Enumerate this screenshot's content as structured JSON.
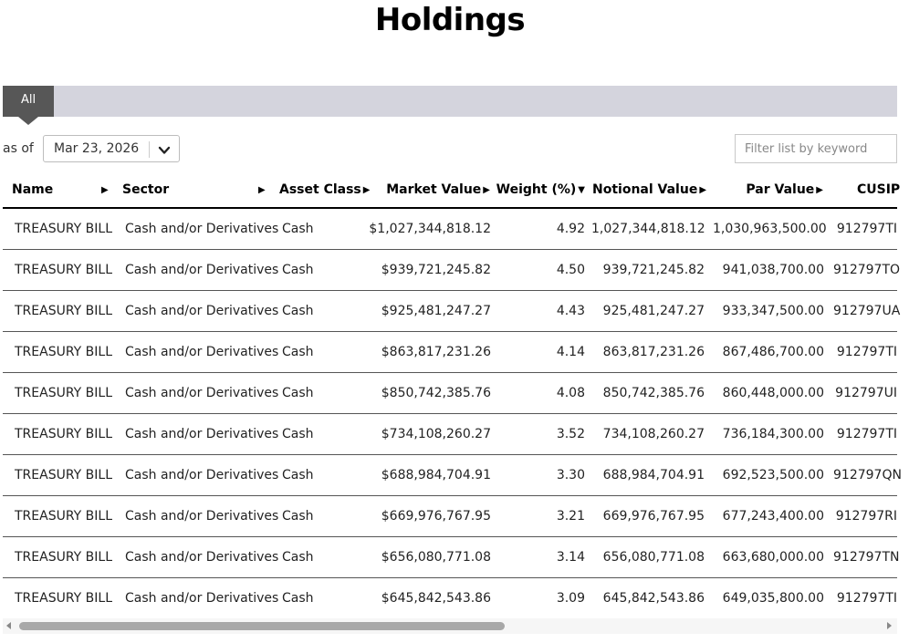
{
  "page": {
    "title": "Holdings"
  },
  "tabs": [
    {
      "label": "All"
    }
  ],
  "controls": {
    "as_of_label": "as of",
    "date_value": "Mar 23, 2026",
    "filter_placeholder": "Filter list by keyword"
  },
  "table": {
    "columns": {
      "name": "Name",
      "sector": "Sector",
      "asset_class": "Asset Class",
      "market_value": "Market Value",
      "weight": "Weight (%)",
      "notional_value": "Notional Value",
      "par_value": "Par Value",
      "cusip": "CUSIP"
    },
    "sort_indicator": "▶",
    "sorted_indicator": "▼",
    "rows": [
      {
        "name": "TREASURY BILL",
        "sector": "Cash and/or Derivatives",
        "asset_class": "Cash",
        "market_value": "$1,027,344,818.12",
        "weight": "4.92",
        "notional_value": "1,027,344,818.12",
        "par_value": "1,030,963,500.00",
        "cusip": "912797TI"
      },
      {
        "name": "TREASURY BILL",
        "sector": "Cash and/or Derivatives",
        "asset_class": "Cash",
        "market_value": "$939,721,245.82",
        "weight": "4.50",
        "notional_value": "939,721,245.82",
        "par_value": "941,038,700.00",
        "cusip": "912797TO"
      },
      {
        "name": "TREASURY BILL",
        "sector": "Cash and/or Derivatives",
        "asset_class": "Cash",
        "market_value": "$925,481,247.27",
        "weight": "4.43",
        "notional_value": "925,481,247.27",
        "par_value": "933,347,500.00",
        "cusip": "912797UA"
      },
      {
        "name": "TREASURY BILL",
        "sector": "Cash and/or Derivatives",
        "asset_class": "Cash",
        "market_value": "$863,817,231.26",
        "weight": "4.14",
        "notional_value": "863,817,231.26",
        "par_value": "867,486,700.00",
        "cusip": "912797TI"
      },
      {
        "name": "TREASURY BILL",
        "sector": "Cash and/or Derivatives",
        "asset_class": "Cash",
        "market_value": "$850,742,385.76",
        "weight": "4.08",
        "notional_value": "850,742,385.76",
        "par_value": "860,448,000.00",
        "cusip": "912797UI"
      },
      {
        "name": "TREASURY BILL",
        "sector": "Cash and/or Derivatives",
        "asset_class": "Cash",
        "market_value": "$734,108,260.27",
        "weight": "3.52",
        "notional_value": "734,108,260.27",
        "par_value": "736,184,300.00",
        "cusip": "912797TI"
      },
      {
        "name": "TREASURY BILL",
        "sector": "Cash and/or Derivatives",
        "asset_class": "Cash",
        "market_value": "$688,984,704.91",
        "weight": "3.30",
        "notional_value": "688,984,704.91",
        "par_value": "692,523,500.00",
        "cusip": "912797QN"
      },
      {
        "name": "TREASURY BILL",
        "sector": "Cash and/or Derivatives",
        "asset_class": "Cash",
        "market_value": "$669,976,767.95",
        "weight": "3.21",
        "notional_value": "669,976,767.95",
        "par_value": "677,243,400.00",
        "cusip": "912797RI"
      },
      {
        "name": "TREASURY BILL",
        "sector": "Cash and/or Derivatives",
        "asset_class": "Cash",
        "market_value": "$656,080,771.08",
        "weight": "3.14",
        "notional_value": "656,080,771.08",
        "par_value": "663,680,000.00",
        "cusip": "912797TN"
      },
      {
        "name": "TREASURY BILL",
        "sector": "Cash and/or Derivatives",
        "asset_class": "Cash",
        "market_value": "$645,842,543.86",
        "weight": "3.09",
        "notional_value": "645,842,543.86",
        "par_value": "649,035,800.00",
        "cusip": "912797TI"
      }
    ]
  },
  "icons": {
    "dropdown": "chevron-down-icon",
    "sort": "triangle-right-icon",
    "sorted_desc": "triangle-down-icon"
  }
}
